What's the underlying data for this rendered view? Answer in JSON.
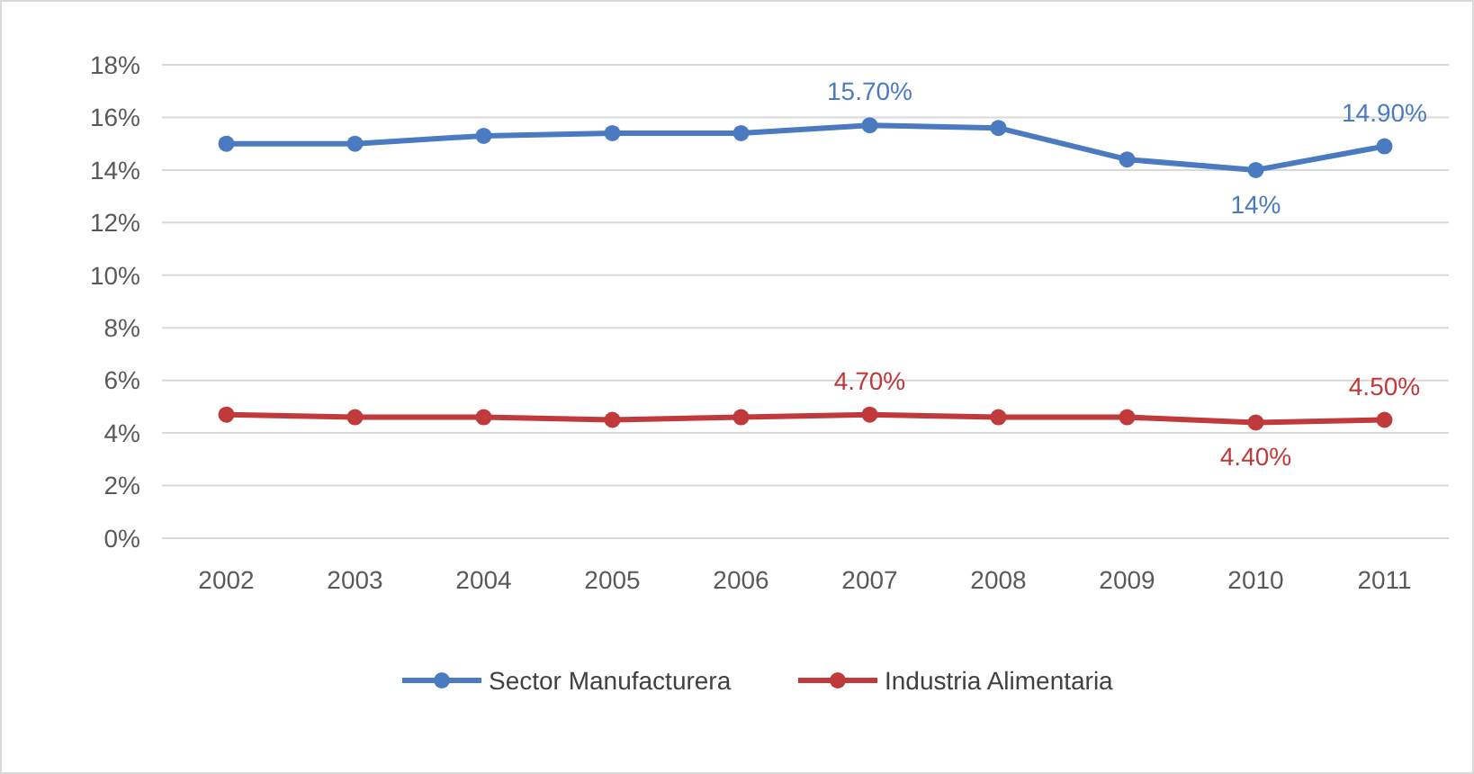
{
  "chart_data": {
    "type": "line",
    "categories": [
      "2002",
      "2003",
      "2004",
      "2005",
      "2006",
      "2007",
      "2008",
      "2009",
      "2010",
      "2011"
    ],
    "series": [
      {
        "name": "Sector Manufacturera",
        "color": "#4a7bc0",
        "values": [
          15.0,
          15.0,
          15.3,
          15.4,
          15.4,
          15.7,
          15.6,
          14.4,
          14.0,
          14.9
        ],
        "value_labels": [
          null,
          null,
          null,
          null,
          null,
          "15.70%",
          null,
          null,
          "14%",
          "14.90%"
        ]
      },
      {
        "name": "Industria Alimentaria",
        "color": "#c0393b",
        "values": [
          4.7,
          4.6,
          4.6,
          4.5,
          4.6,
          4.7,
          4.6,
          4.6,
          4.4,
          4.5
        ],
        "value_labels": [
          null,
          null,
          null,
          null,
          null,
          "4.70%",
          null,
          null,
          "4.40%",
          "4.50%"
        ]
      }
    ],
    "ylim": [
      0,
      18
    ],
    "yticks": [
      {
        "value": 0,
        "label": "0%"
      },
      {
        "value": 2,
        "label": "2%"
      },
      {
        "value": 4,
        "label": "4%"
      },
      {
        "value": 6,
        "label": "6%"
      },
      {
        "value": 8,
        "label": "8%"
      },
      {
        "value": 10,
        "label": "10%"
      },
      {
        "value": 12,
        "label": "12%"
      },
      {
        "value": 14,
        "label": "14%"
      },
      {
        "value": 16,
        "label": "16%"
      },
      {
        "value": 18,
        "label": "18%"
      }
    ],
    "grid": "y",
    "legend": "bottom",
    "marker": "circle",
    "line_style": "solid"
  }
}
